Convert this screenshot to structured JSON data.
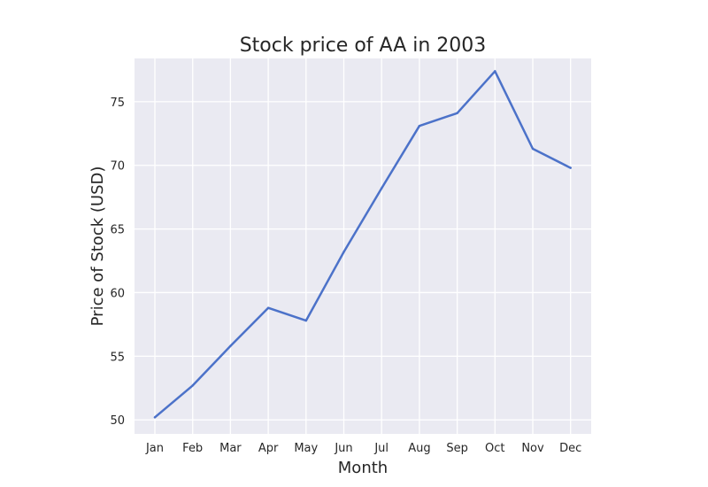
{
  "chart_data": {
    "type": "line",
    "title": "Stock price of AA in 2003",
    "xlabel": "Month",
    "ylabel": "Price of Stock (USD)",
    "categories": [
      "Jan",
      "Feb",
      "Mar",
      "Apr",
      "May",
      "Jun",
      "Jul",
      "Aug",
      "Sep",
      "Oct",
      "Nov",
      "Dec"
    ],
    "series": [
      {
        "values": [
          50.2,
          52.7,
          55.8,
          58.8,
          57.8,
          63.2,
          68.2,
          73.1,
          74.1,
          77.4,
          71.3,
          69.8
        ],
        "color": "#4c72c9"
      }
    ],
    "ylim": [
      48.9,
      78.4
    ],
    "yticks": [
      50,
      55,
      60,
      65,
      70,
      75
    ],
    "grid": true,
    "legend": "none",
    "background_color": "#eaeaf2",
    "grid_color": "#ffffff"
  }
}
